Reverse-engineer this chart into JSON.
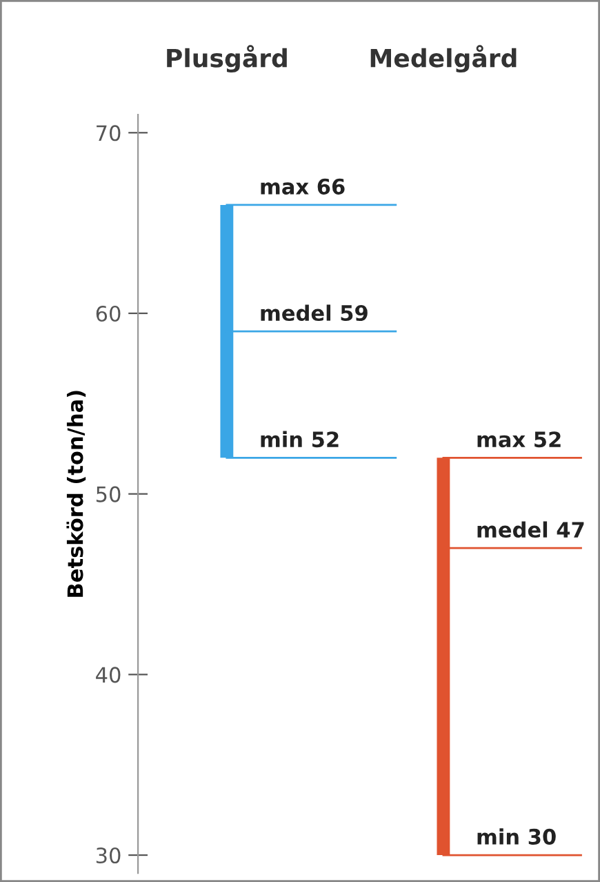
{
  "chart_data": {
    "type": "bar",
    "categories": [
      "Plusgård",
      "Medelgård"
    ],
    "base": [
      52,
      30
    ],
    "values": [
      14,
      22
    ],
    "colors": [
      "#3aa6e6",
      "#e0532f"
    ],
    "ylabel": "Betskörd (ton/ha)",
    "ylim": [
      29,
      71
    ],
    "yticks": [
      30,
      40,
      50,
      60,
      70
    ],
    "grid": false,
    "ref_lines": [
      {
        "axis": "y",
        "value": 66,
        "label": "max 66",
        "color": "#3aa6e6"
      },
      {
        "axis": "y",
        "value": 59,
        "label": "medel 59",
        "color": "#3aa6e6"
      },
      {
        "axis": "y",
        "value": 52,
        "label": "min 52",
        "color": "#3aa6e6"
      },
      {
        "axis": "y",
        "value": 52,
        "label": "max 52",
        "color": "#e0532f"
      },
      {
        "axis": "y",
        "value": 47,
        "label": "medel 47",
        "color": "#e0532f"
      },
      {
        "axis": "y",
        "value": 30,
        "label": "min 30",
        "color": "#e0532f"
      }
    ]
  }
}
